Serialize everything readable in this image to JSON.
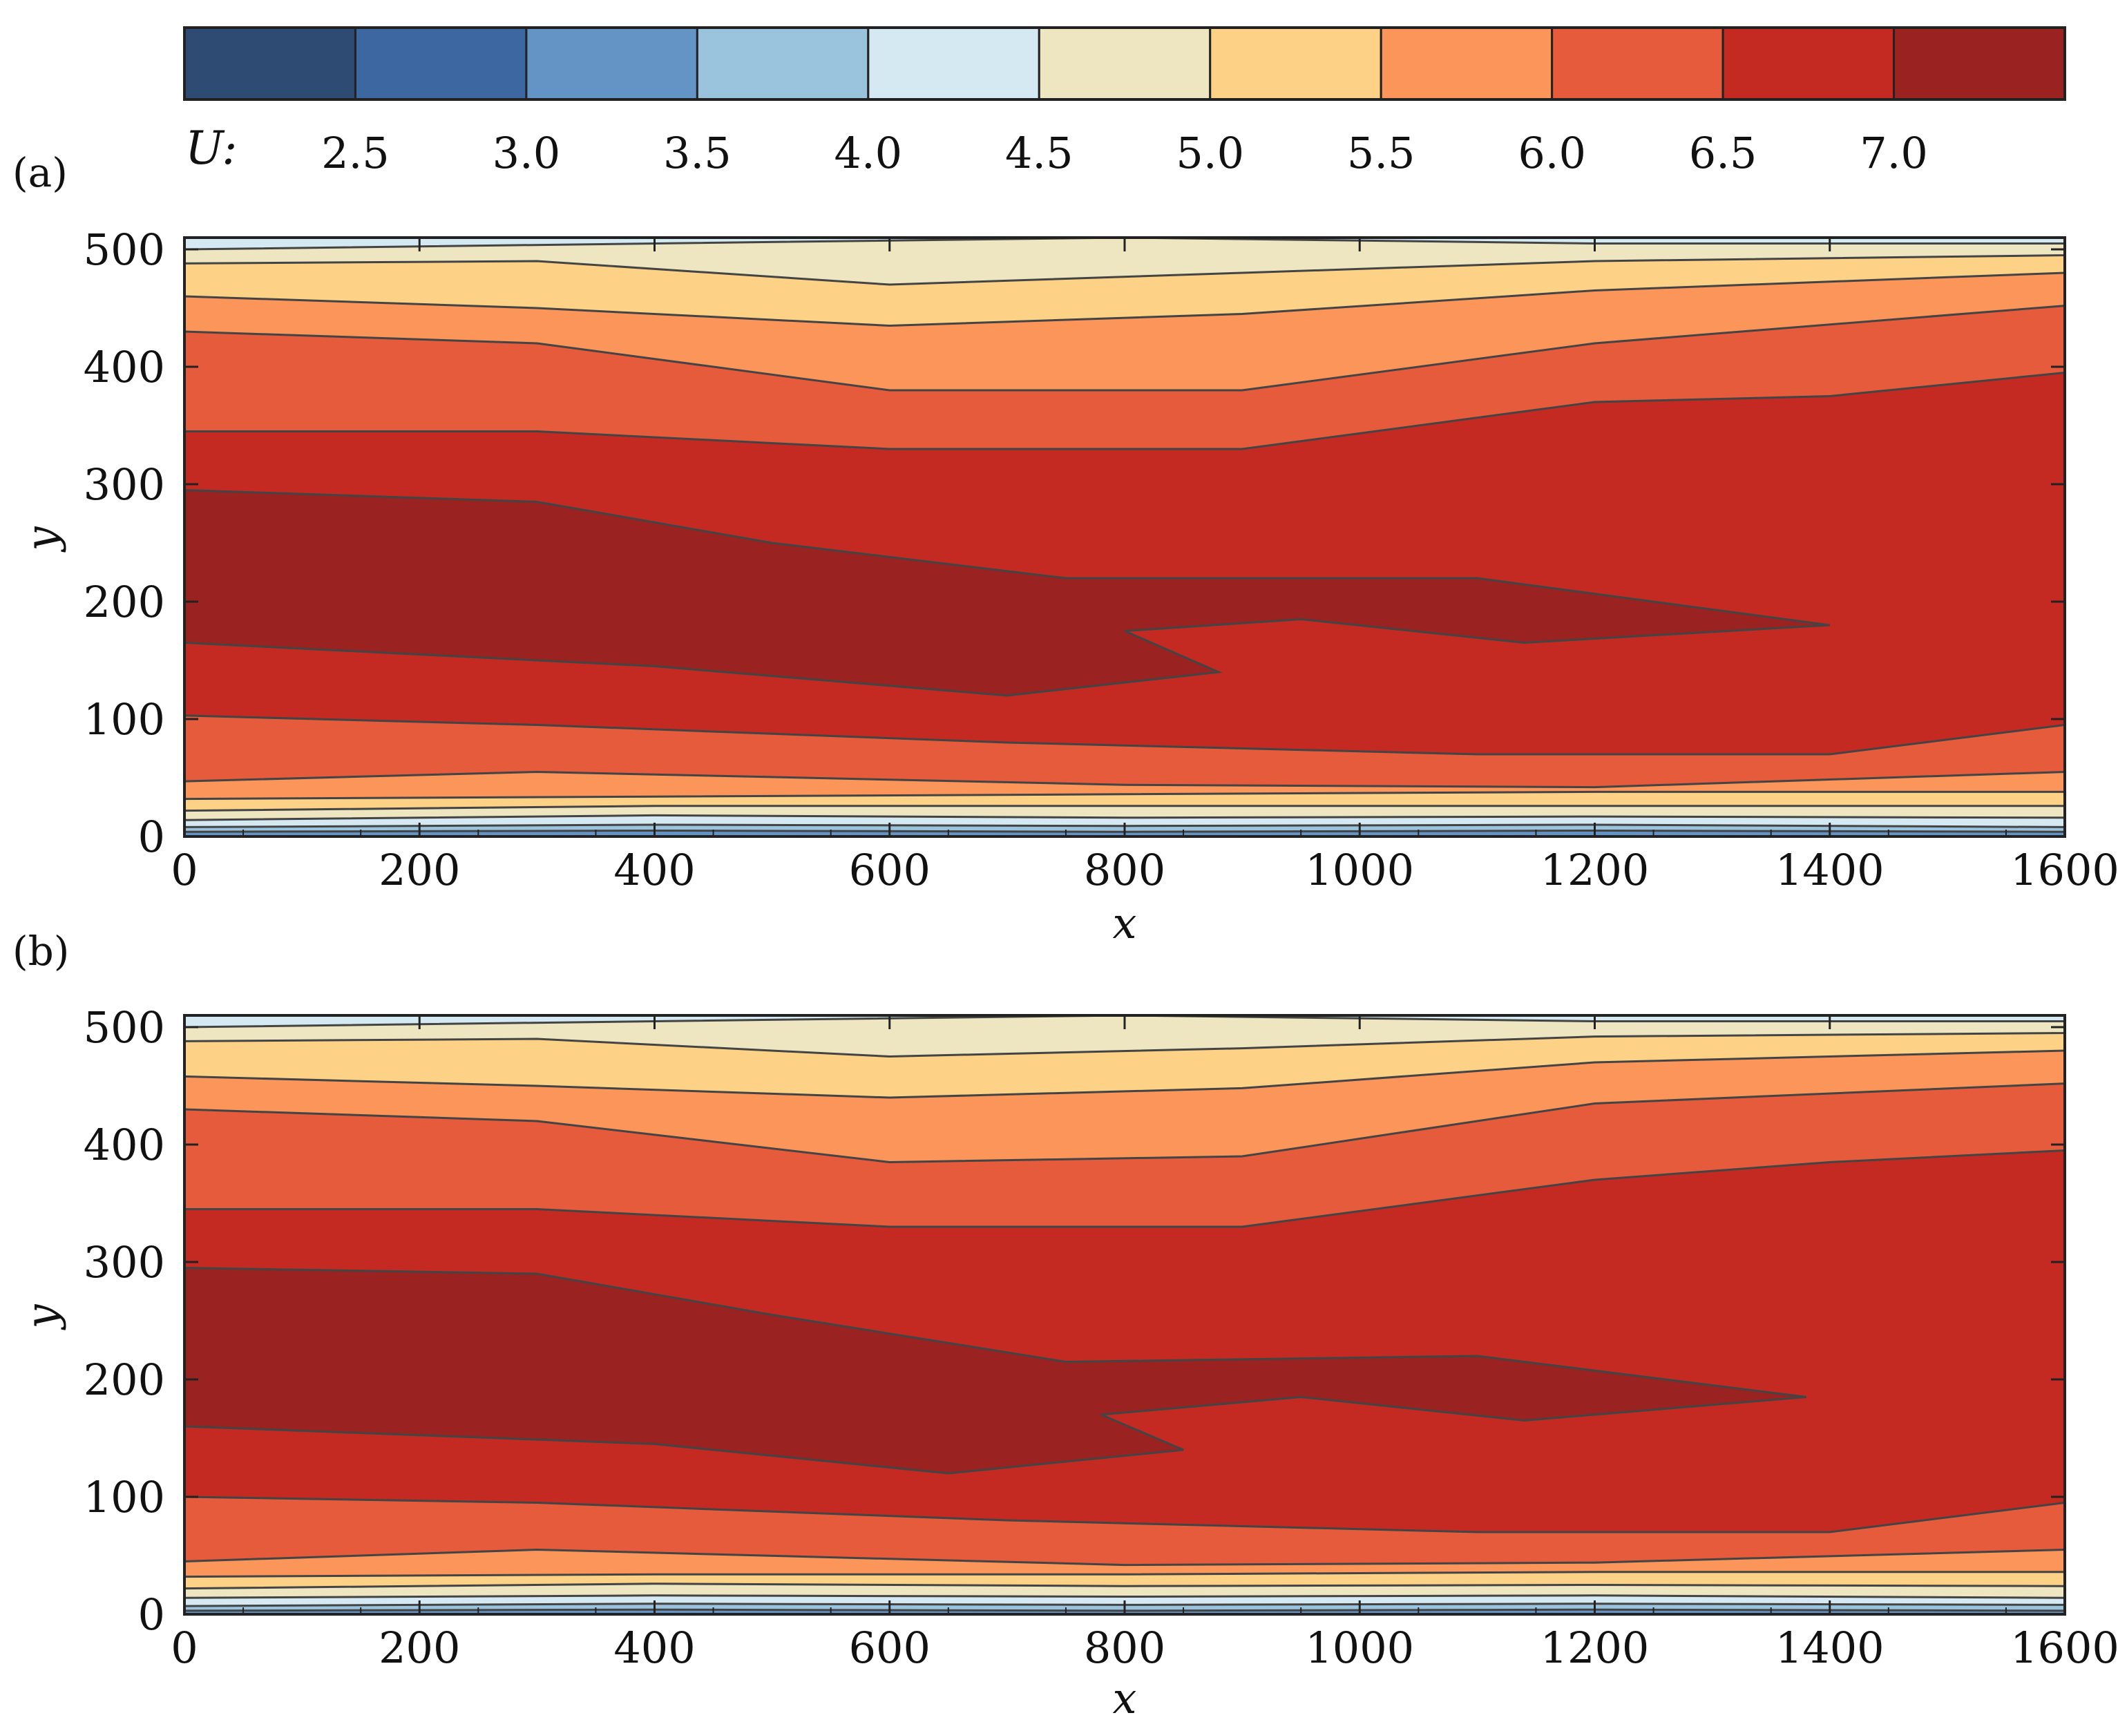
{
  "chart_data": {
    "colorbar": {
      "variable_label": "U:",
      "tick_labels": [
        "2.5",
        "3.0",
        "3.5",
        "4.0",
        "4.5",
        "5.0",
        "5.5",
        "6.0",
        "6.5",
        "7.0"
      ],
      "levels": [
        2.5,
        3.0,
        3.5,
        4.0,
        4.5,
        5.0,
        5.5,
        6.0,
        6.5,
        7.0
      ],
      "colors": [
        "#2d4b73",
        "#3c67a1",
        "#6494c6",
        "#9ac4de",
        "#d4e9f2",
        "#ede6c0",
        "#fdd286",
        "#fb9559",
        "#e65b3c",
        "#c42a22",
        "#9a2220"
      ]
    },
    "panels": [
      {
        "type": "heatmap",
        "label": "(a)",
        "xlabel": "x",
        "ylabel": "y",
        "xlim": [
          0,
          1600
        ],
        "ylim": [
          0,
          510
        ],
        "xticks": [
          0,
          200,
          400,
          600,
          800,
          1000,
          1200,
          1400,
          1600
        ],
        "yticks": [
          0,
          100,
          200,
          300,
          400,
          500
        ],
        "xtick_labels": [
          "0",
          "200",
          "400",
          "600",
          "800",
          "1000",
          "1200",
          "1400",
          "1600"
        ],
        "ytick_labels": [
          "0",
          "100",
          "200",
          "300",
          "400",
          "500"
        ],
        "xlabel_text": "x",
        "ylabel_text": "y",
        "bands": [
          {
            "x": [
              0,
              400,
              800,
              1200,
              1600
            ],
            "y": [
              0,
              0,
              0,
              0,
              0
            ]
          },
          {
            "x": [
              0,
              400,
              800,
              1200,
              1600
            ],
            "y": [
              4,
              5,
              4,
              5,
              4
            ]
          },
          {
            "x": [
              0,
              400,
              800,
              1200,
              1600
            ],
            "y": [
              8,
              10,
              9,
              10,
              8
            ]
          },
          {
            "x": [
              0,
              400,
              800,
              1200,
              1600
            ],
            "y": [
              14,
              18,
              16,
              17,
              16
            ]
          },
          {
            "x": [
              0,
              400,
              800,
              1200,
              1600
            ],
            "y": [
              22,
              26,
              26,
              26,
              26
            ]
          },
          {
            "x": [
              0,
              400,
              800,
              1200,
              1600
            ],
            "y": [
              32,
              34,
              36,
              38,
              38
            ]
          },
          {
            "x": [
              0,
              300,
              800,
              1200,
              1600
            ],
            "y": [
              47,
              55,
              44,
              42,
              55
            ]
          },
          {
            "x": [
              0,
              300,
              700,
              1100,
              1400,
              1600
            ],
            "y": [
              103,
              95,
              80,
              70,
              70,
              95
            ]
          },
          null,
          {
            "x": [
              0,
              300,
              600,
              900,
              1200,
              1400,
              1600
            ],
            "y": [
              345,
              345,
              330,
              330,
              370,
              375,
              395
            ]
          },
          {
            "x": [
              0,
              300,
              600,
              900,
              1200,
              1600
            ],
            "y": [
              430,
              420,
              380,
              380,
              420,
              452
            ]
          },
          {
            "x": [
              0,
              300,
              600,
              900,
              1200,
              1600
            ],
            "y": [
              460,
              450,
              435,
              445,
              465,
              480
            ]
          },
          {
            "x": [
              0,
              300,
              600,
              900,
              1200,
              1600
            ],
            "y": [
              488,
              490,
              470,
              480,
              490,
              495
            ]
          },
          {
            "x": [
              0,
              400,
              800,
              1200,
              1600
            ],
            "y": [
              500,
              505,
              510,
              505,
              505
            ]
          },
          {
            "x": [
              0,
              400,
              800,
              1200,
              1600
            ],
            "y": [
              510,
              510,
              510,
              510,
              510
            ]
          }
        ],
        "core": [
          {
            "x": [
              0,
              300,
              500,
              750,
              1100,
              1400,
              1400,
              1140,
              950,
              800,
              880,
              700,
              400,
              0
            ],
            "y": [
              295,
              285,
              250,
              220,
              220,
              180,
              180,
              165,
              185,
              175,
              140,
              120,
              145,
              165
            ]
          }
        ]
      },
      {
        "type": "heatmap",
        "label": "(b)",
        "xlabel": "x",
        "ylabel": "y",
        "xlim": [
          0,
          1600
        ],
        "ylim": [
          0,
          510
        ],
        "xticks": [
          0,
          200,
          400,
          600,
          800,
          1000,
          1200,
          1400,
          1600
        ],
        "yticks": [
          0,
          100,
          200,
          300,
          400,
          500
        ],
        "xtick_labels": [
          "0",
          "200",
          "400",
          "600",
          "800",
          "1000",
          "1200",
          "1400",
          "1600"
        ],
        "ytick_labels": [
          "0",
          "100",
          "200",
          "300",
          "400",
          "500"
        ],
        "xlabel_text": "x",
        "ylabel_text": "y",
        "bands": [
          null,
          {
            "x": [
              0,
              400,
              800,
              1200,
              1600
            ],
            "y": [
              3,
              4,
              3,
              4,
              3
            ]
          },
          {
            "x": [
              0,
              400,
              800,
              1200,
              1600
            ],
            "y": [
              7,
              9,
              8,
              9,
              8
            ]
          },
          {
            "x": [
              0,
              400,
              800,
              1200,
              1600
            ],
            "y": [
              14,
              16,
              15,
              16,
              14
            ]
          },
          {
            "x": [
              0,
              400,
              800,
              1200,
              1600
            ],
            "y": [
              22,
              26,
              24,
              25,
              24
            ]
          },
          {
            "x": [
              0,
              400,
              800,
              1200,
              1600
            ],
            "y": [
              32,
              34,
              34,
              36,
              36
            ]
          },
          {
            "x": [
              0,
              300,
              800,
              1200,
              1600
            ],
            "y": [
              45,
              55,
              42,
              44,
              55
            ]
          },
          {
            "x": [
              0,
              300,
              700,
              1100,
              1400,
              1600
            ],
            "y": [
              100,
              95,
              80,
              70,
              70,
              95
            ]
          },
          null,
          {
            "x": [
              0,
              300,
              600,
              900,
              1200,
              1400,
              1600
            ],
            "y": [
              345,
              345,
              330,
              330,
              370,
              385,
              395
            ]
          },
          {
            "x": [
              0,
              300,
              600,
              900,
              1200,
              1600
            ],
            "y": [
              430,
              420,
              385,
              390,
              435,
              452
            ]
          },
          {
            "x": [
              0,
              300,
              600,
              900,
              1200,
              1600
            ],
            "y": [
              458,
              450,
              440,
              448,
              470,
              480
            ]
          },
          {
            "x": [
              0,
              300,
              600,
              900,
              1200,
              1600
            ],
            "y": [
              488,
              490,
              475,
              482,
              492,
              495
            ]
          },
          {
            "x": [
              0,
              400,
              800,
              1200,
              1600
            ],
            "y": [
              500,
              505,
              510,
              505,
              505
            ]
          },
          {
            "x": [
              0,
              400,
              800,
              1200,
              1600
            ],
            "y": [
              510,
              510,
              510,
              510,
              510
            ]
          }
        ],
        "core": [
          {
            "x": [
              0,
              300,
              500,
              750,
              1100,
              1380,
              1380,
              1140,
              950,
              780,
              850,
              650,
              400,
              0
            ],
            "y": [
              295,
              290,
              255,
              215,
              220,
              185,
              185,
              165,
              185,
              170,
              140,
              120,
              145,
              160
            ]
          }
        ]
      }
    ]
  }
}
